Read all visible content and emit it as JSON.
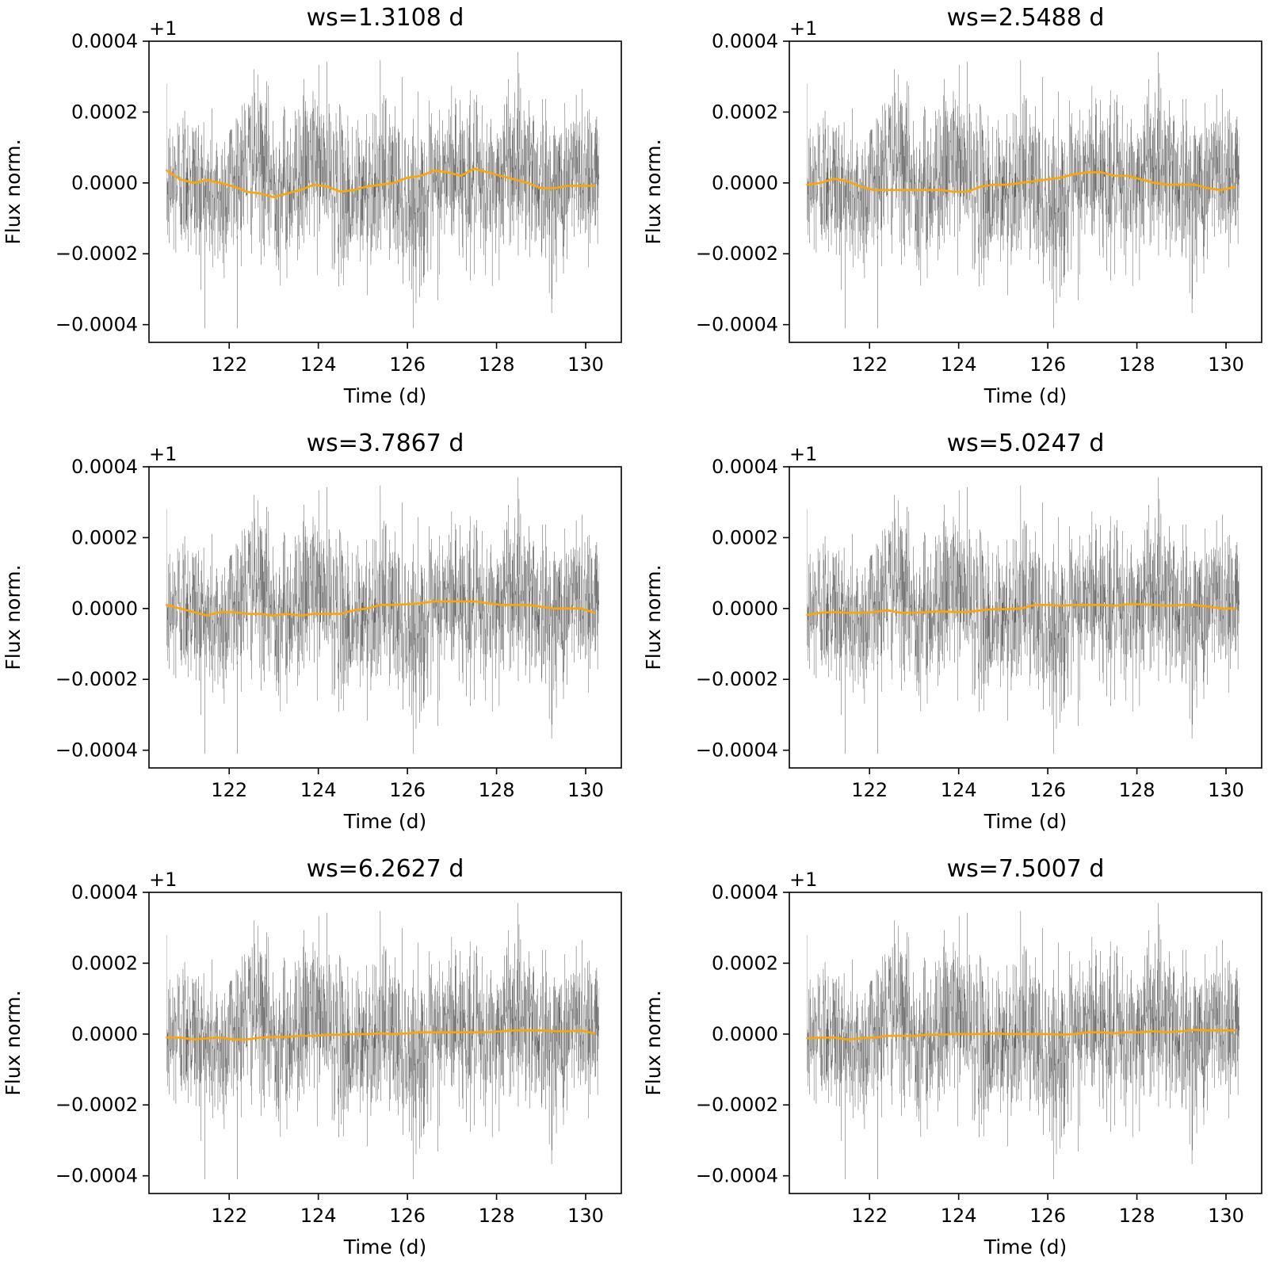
{
  "chart_data": [
    {
      "type": "line",
      "title": "ws=1.3108 d",
      "xlabel": "Time (d)",
      "ylabel": "Flux norm.",
      "offset_label": "+1",
      "xlim": [
        120.2,
        130.8
      ],
      "ylim": [
        -0.00045,
        0.0004
      ],
      "x_ticks": [
        122,
        124,
        126,
        128,
        130
      ],
      "y_ticks": [
        -0.0004,
        -0.0002,
        0.0,
        0.0002,
        0.0004
      ],
      "x_tick_labels": [
        "122",
        "124",
        "126",
        "128",
        "130"
      ],
      "y_tick_labels": [
        "−0.0004",
        "−0.0002",
        "0.0000",
        "0.0002",
        "0.0004"
      ],
      "grid": false,
      "series": [
        {
          "style": "raw",
          "color": "#000000",
          "x_range": [
            120.6,
            130.3
          ],
          "y_range": [
            -0.00041,
            0.00037
          ]
        },
        {
          "style": "trend",
          "color": "#ffa500",
          "x": [
            120.6,
            120.9,
            121.2,
            121.5,
            121.8,
            122.1,
            122.4,
            122.7,
            123.0,
            123.3,
            123.6,
            123.9,
            124.2,
            124.5,
            124.8,
            125.1,
            125.4,
            125.7,
            126.0,
            126.3,
            126.6,
            126.9,
            127.2,
            127.5,
            127.8,
            128.1,
            128.4,
            128.7,
            129.0,
            129.3,
            129.6,
            129.9,
            130.2
          ],
          "y": [
            3.5e-05,
            1e-05,
            0.0,
            8e-06,
            0.0,
            -1e-05,
            -2.5e-05,
            -3e-05,
            -4e-05,
            -3e-05,
            -2e-05,
            -5e-06,
            -1e-05,
            -2.5e-05,
            -2e-05,
            -1e-05,
            -5e-06,
            0.0,
            1.5e-05,
            2e-05,
            3.5e-05,
            3e-05,
            2e-05,
            4e-05,
            3e-05,
            2e-05,
            1e-05,
            0.0,
            -1.5e-05,
            -1.5e-05,
            -8e-06,
            -8e-06,
            -8e-06
          ]
        }
      ]
    },
    {
      "type": "line",
      "title": "ws=2.5488 d",
      "xlabel": "Time (d)",
      "ylabel": "Flux norm.",
      "offset_label": "+1",
      "xlim": [
        120.2,
        130.8
      ],
      "ylim": [
        -0.00045,
        0.0004
      ],
      "x_ticks": [
        122,
        124,
        126,
        128,
        130
      ],
      "y_ticks": [
        -0.0004,
        -0.0002,
        0.0,
        0.0002,
        0.0004
      ],
      "x_tick_labels": [
        "122",
        "124",
        "126",
        "128",
        "130"
      ],
      "y_tick_labels": [
        "−0.0004",
        "−0.0002",
        "0.0000",
        "0.0002",
        "0.0004"
      ],
      "grid": false,
      "series": [
        {
          "style": "raw",
          "color": "#000000",
          "x_range": [
            120.6,
            130.3
          ],
          "y_range": [
            -0.00041,
            0.00037
          ]
        },
        {
          "style": "trend",
          "color": "#ffa500",
          "x": [
            120.6,
            120.9,
            121.2,
            121.5,
            121.8,
            122.1,
            122.4,
            122.7,
            123.0,
            123.3,
            123.6,
            123.9,
            124.2,
            124.5,
            124.8,
            125.1,
            125.4,
            125.7,
            126.0,
            126.3,
            126.6,
            126.9,
            127.2,
            127.5,
            127.8,
            128.1,
            128.4,
            128.7,
            129.0,
            129.3,
            129.6,
            129.9,
            130.2
          ],
          "y": [
            -5e-06,
            0.0,
            1.2e-05,
            5e-06,
            -1e-05,
            -2e-05,
            -2e-05,
            -2e-05,
            -2e-05,
            -2e-05,
            -2e-05,
            -2.5e-05,
            -2.5e-05,
            -1e-05,
            -5e-06,
            -5e-06,
            0.0,
            5e-06,
            1e-05,
            1.5e-05,
            2.5e-05,
            3e-05,
            3e-05,
            2e-05,
            2e-05,
            1e-05,
            0.0,
            -5e-06,
            -5e-06,
            -5e-06,
            -1.5e-05,
            -2e-05,
            -1.2e-05
          ]
        }
      ]
    },
    {
      "type": "line",
      "title": "ws=3.7867 d",
      "xlabel": "Time (d)",
      "ylabel": "Flux norm.",
      "offset_label": "+1",
      "xlim": [
        120.2,
        130.8
      ],
      "ylim": [
        -0.00045,
        0.0004
      ],
      "x_ticks": [
        122,
        124,
        126,
        128,
        130
      ],
      "y_ticks": [
        -0.0004,
        -0.0002,
        0.0,
        0.0002,
        0.0004
      ],
      "x_tick_labels": [
        "122",
        "124",
        "126",
        "128",
        "130"
      ],
      "y_tick_labels": [
        "−0.0004",
        "−0.0002",
        "0.0000",
        "0.0002",
        "0.0004"
      ],
      "grid": false,
      "series": [
        {
          "style": "raw",
          "color": "#000000",
          "x_range": [
            120.6,
            130.3
          ],
          "y_range": [
            -0.00041,
            0.00037
          ]
        },
        {
          "style": "trend",
          "color": "#ffa500",
          "x": [
            120.6,
            120.9,
            121.2,
            121.5,
            121.8,
            122.1,
            122.4,
            122.7,
            123.0,
            123.3,
            123.6,
            123.9,
            124.2,
            124.5,
            124.8,
            125.1,
            125.4,
            125.7,
            126.0,
            126.3,
            126.6,
            126.9,
            127.2,
            127.5,
            127.8,
            128.1,
            128.4,
            128.7,
            129.0,
            129.3,
            129.6,
            129.9,
            130.2
          ],
          "y": [
            1e-05,
            0.0,
            -1e-05,
            -2e-05,
            -1e-05,
            -1e-05,
            -1.5e-05,
            -1.5e-05,
            -2e-05,
            -1.5e-05,
            -2e-05,
            -1.5e-05,
            -1.5e-05,
            -1.5e-05,
            -5e-06,
            0.0,
            1e-05,
            1e-05,
            1.2e-05,
            1.5e-05,
            2e-05,
            2e-05,
            2e-05,
            2e-05,
            1.5e-05,
            1e-05,
            1e-05,
            1e-05,
            5e-06,
            0.0,
            0.0,
            0.0,
            -1.2e-05
          ]
        }
      ]
    },
    {
      "type": "line",
      "title": "ws=5.0247 d",
      "xlabel": "Time (d)",
      "ylabel": "Flux norm.",
      "offset_label": "+1",
      "xlim": [
        120.2,
        130.8
      ],
      "ylim": [
        -0.00045,
        0.0004
      ],
      "x_ticks": [
        122,
        124,
        126,
        128,
        130
      ],
      "y_ticks": [
        -0.0004,
        -0.0002,
        0.0,
        0.0002,
        0.0004
      ],
      "x_tick_labels": [
        "122",
        "124",
        "126",
        "128",
        "130"
      ],
      "y_tick_labels": [
        "−0.0004",
        "−0.0002",
        "0.0000",
        "0.0002",
        "0.0004"
      ],
      "grid": false,
      "series": [
        {
          "style": "raw",
          "color": "#000000",
          "x_range": [
            120.6,
            130.3
          ],
          "y_range": [
            -0.00041,
            0.00037
          ]
        },
        {
          "style": "trend",
          "color": "#ffa500",
          "x": [
            120.6,
            120.9,
            121.2,
            121.5,
            121.8,
            122.1,
            122.4,
            122.7,
            123.0,
            123.3,
            123.6,
            123.9,
            124.2,
            124.5,
            124.8,
            125.1,
            125.4,
            125.7,
            126.0,
            126.3,
            126.6,
            126.9,
            127.2,
            127.5,
            127.8,
            128.1,
            128.4,
            128.7,
            129.0,
            129.3,
            129.6,
            129.9,
            130.2
          ],
          "y": [
            -1.8e-05,
            -1.2e-05,
            -1e-05,
            -1.2e-05,
            -1.2e-05,
            -1e-05,
            -5e-06,
            -1.2e-05,
            -1.2e-05,
            -1e-05,
            -8e-06,
            -1e-05,
            -1e-05,
            -5e-06,
            -2e-06,
            -2e-06,
            0.0,
            1e-05,
            1e-05,
            8e-06,
            1e-05,
            1e-05,
            1e-05,
            8e-06,
            1.2e-05,
            1.2e-05,
            1e-05,
            8e-06,
            1e-05,
            1e-05,
            5e-06,
            0.0,
            0.0
          ]
        }
      ]
    },
    {
      "type": "line",
      "title": "ws=6.2627 d",
      "xlabel": "Time (d)",
      "ylabel": "Flux norm.",
      "offset_label": "+1",
      "xlim": [
        120.2,
        130.8
      ],
      "ylim": [
        -0.00045,
        0.0004
      ],
      "x_ticks": [
        122,
        124,
        126,
        128,
        130
      ],
      "y_ticks": [
        -0.0004,
        -0.0002,
        0.0,
        0.0002,
        0.0004
      ],
      "x_tick_labels": [
        "122",
        "124",
        "126",
        "128",
        "130"
      ],
      "y_tick_labels": [
        "−0.0004",
        "−0.0002",
        "0.0000",
        "0.0002",
        "0.0004"
      ],
      "grid": false,
      "series": [
        {
          "style": "raw",
          "color": "#000000",
          "x_range": [
            120.6,
            130.3
          ],
          "y_range": [
            -0.00041,
            0.00037
          ]
        },
        {
          "style": "trend",
          "color": "#ffa500",
          "x": [
            120.6,
            120.9,
            121.2,
            121.5,
            121.8,
            122.1,
            122.4,
            122.7,
            123.0,
            123.3,
            123.6,
            123.9,
            124.2,
            124.5,
            124.8,
            125.1,
            125.4,
            125.7,
            126.0,
            126.3,
            126.6,
            126.9,
            127.2,
            127.5,
            127.8,
            128.1,
            128.4,
            128.7,
            129.0,
            129.3,
            129.6,
            129.9,
            130.2
          ],
          "y": [
            -1e-05,
            -1e-05,
            -1.5e-05,
            -1.2e-05,
            -1e-05,
            -1.5e-05,
            -1.5e-05,
            -1e-05,
            -8e-06,
            -8e-06,
            -5e-06,
            -5e-06,
            -2e-06,
            -2e-06,
            0.0,
            0.0,
            2e-06,
            0.0,
            2e-06,
            5e-06,
            5e-06,
            5e-06,
            5e-06,
            5e-06,
            5e-06,
            8e-06,
            1e-05,
            1e-05,
            1e-05,
            8e-06,
            8e-06,
            1e-05,
            2e-06
          ]
        }
      ]
    },
    {
      "type": "line",
      "title": "ws=7.5007 d",
      "xlabel": "Time (d)",
      "ylabel": "Flux norm.",
      "offset_label": "+1",
      "xlim": [
        120.2,
        130.8
      ],
      "ylim": [
        -0.00045,
        0.0004
      ],
      "x_ticks": [
        122,
        124,
        126,
        128,
        130
      ],
      "y_ticks": [
        -0.0004,
        -0.0002,
        0.0,
        0.0002,
        0.0004
      ],
      "x_tick_labels": [
        "122",
        "124",
        "126",
        "128",
        "130"
      ],
      "y_tick_labels": [
        "−0.0004",
        "−0.0002",
        "0.0000",
        "0.0002",
        "0.0004"
      ],
      "grid": false,
      "series": [
        {
          "style": "raw",
          "color": "#000000",
          "x_range": [
            120.6,
            130.3
          ],
          "y_range": [
            -0.00041,
            0.00037
          ]
        },
        {
          "style": "trend",
          "color": "#ffa500",
          "x": [
            120.6,
            120.9,
            121.2,
            121.5,
            121.8,
            122.1,
            122.4,
            122.7,
            123.0,
            123.3,
            123.6,
            123.9,
            124.2,
            124.5,
            124.8,
            125.1,
            125.4,
            125.7,
            126.0,
            126.3,
            126.6,
            126.9,
            127.2,
            127.5,
            127.8,
            128.1,
            128.4,
            128.7,
            129.0,
            129.3,
            129.6,
            129.9,
            130.2
          ],
          "y": [
            -1.2e-05,
            -1e-05,
            -1e-05,
            -1.5e-05,
            -1.2e-05,
            -1e-05,
            -5e-06,
            -5e-06,
            -5e-06,
            -2e-06,
            -2e-06,
            0.0,
            0.0,
            0.0,
            2e-06,
            0.0,
            0.0,
            0.0,
            0.0,
            -2e-06,
            0.0,
            5e-06,
            5e-06,
            2e-06,
            5e-06,
            5e-06,
            8e-06,
            5e-06,
            8e-06,
            1.2e-05,
            1e-05,
            1e-05,
            1e-05
          ]
        }
      ]
    }
  ]
}
